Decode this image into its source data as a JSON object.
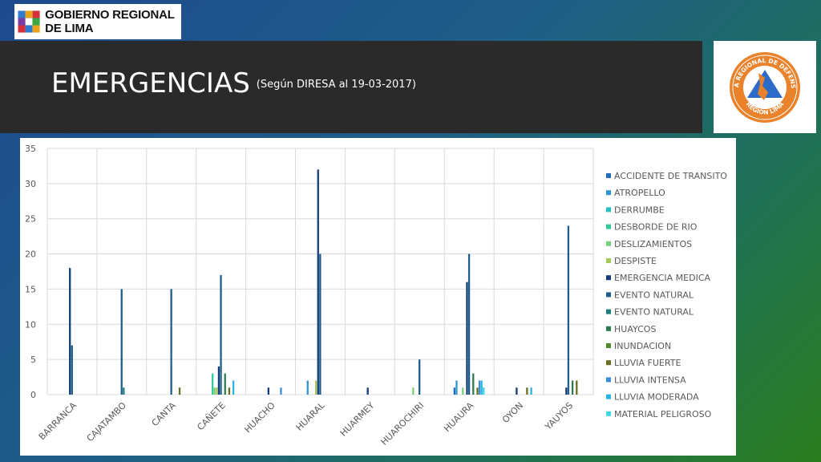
{
  "header": {
    "logo_text": "GOBIERNO REGIONAL DE LIMA",
    "title": "EMERGENCIAS",
    "subtitle": "(Según DIRESA al 19-03-2017)",
    "seal_text_top": "SISTEMA REGIONAL DE DEFENSA CIVIL",
    "seal_text_bottom": "REGION LIMA"
  },
  "chart_data": {
    "type": "bar",
    "title": "",
    "xlabel": "",
    "ylabel": "",
    "ylim": [
      0,
      35
    ],
    "yticks": [
      0,
      5,
      10,
      15,
      20,
      25,
      30,
      35
    ],
    "grid": true,
    "legend_position": "right",
    "categories": [
      "BARRANCA",
      "CAJATAMBO",
      "CANTA",
      "CAÑETE",
      "HUACHO",
      "HUARAL",
      "HUARMEY",
      "HUAROCHIRI",
      "HUAURA",
      "OYON",
      "YAUYOS"
    ],
    "series": [
      {
        "name": "ACCIDENTE DE TRANSITO",
        "color": "#1f6cc0",
        "values": [
          0,
          0,
          0,
          0,
          0,
          0,
          0,
          0,
          1,
          0,
          0
        ]
      },
      {
        "name": "ATROPELLO",
        "color": "#2e95d3",
        "values": [
          0,
          0,
          0,
          0,
          0,
          2,
          0,
          0,
          2,
          0,
          0
        ]
      },
      {
        "name": "DERRUMBE",
        "color": "#27c2c6",
        "values": [
          0,
          0,
          0,
          0,
          0,
          0,
          0,
          0,
          0,
          0,
          0
        ]
      },
      {
        "name": "DESBORDE DE RIO",
        "color": "#2fc99a",
        "values": [
          0,
          0,
          0,
          3,
          0,
          0,
          0,
          0,
          0,
          0,
          0
        ]
      },
      {
        "name": "DESLIZAMIENTOS",
        "color": "#7ccf7a",
        "values": [
          0,
          0,
          0,
          1,
          0,
          0,
          0,
          1,
          1,
          0,
          0
        ]
      },
      {
        "name": "DESPISTE",
        "color": "#a7c957",
        "values": [
          0,
          0,
          0,
          1,
          0,
          2,
          0,
          0,
          0,
          0,
          0
        ]
      },
      {
        "name": "EMERGENCIA MEDICA",
        "color": "#143d78",
        "values": [
          18,
          0,
          0,
          4,
          1,
          32,
          1,
          0,
          16,
          1,
          1
        ]
      },
      {
        "name": "EVENTO NATURAL",
        "color": "#1e5e8c",
        "values": [
          7,
          15,
          15,
          17,
          0,
          20,
          0,
          5,
          20,
          0,
          24
        ]
      },
      {
        "name": "EVENTO NATURAL",
        "color": "#1f7f7c",
        "values": [
          0,
          1,
          0,
          0,
          0,
          0,
          0,
          0,
          0,
          0,
          0
        ]
      },
      {
        "name": "HUAYCOS",
        "color": "#2d7b4e",
        "values": [
          0,
          0,
          0,
          3,
          0,
          0,
          0,
          0,
          3,
          0,
          2
        ]
      },
      {
        "name": "INUNDACION",
        "color": "#4d8a2a",
        "values": [
          0,
          0,
          0,
          0,
          0,
          0,
          0,
          0,
          0,
          0,
          0
        ]
      },
      {
        "name": "LLUVIA FUERTE",
        "color": "#6b6e1f",
        "values": [
          0,
          0,
          1,
          1,
          0,
          0,
          0,
          0,
          1,
          1,
          2
        ]
      },
      {
        "name": "LLUVIA INTENSA",
        "color": "#3a8fd8",
        "values": [
          0,
          0,
          0,
          0,
          1,
          0,
          0,
          0,
          2,
          0,
          0
        ]
      },
      {
        "name": "LLUVIA MODERADA",
        "color": "#29b5e3",
        "values": [
          0,
          0,
          0,
          2,
          0,
          0,
          0,
          0,
          2,
          1,
          0
        ]
      },
      {
        "name": "MATERIAL PELIGROSO",
        "color": "#3fd6e0",
        "values": [
          0,
          0,
          0,
          0,
          0,
          0,
          0,
          0,
          1,
          0,
          0
        ]
      }
    ]
  }
}
